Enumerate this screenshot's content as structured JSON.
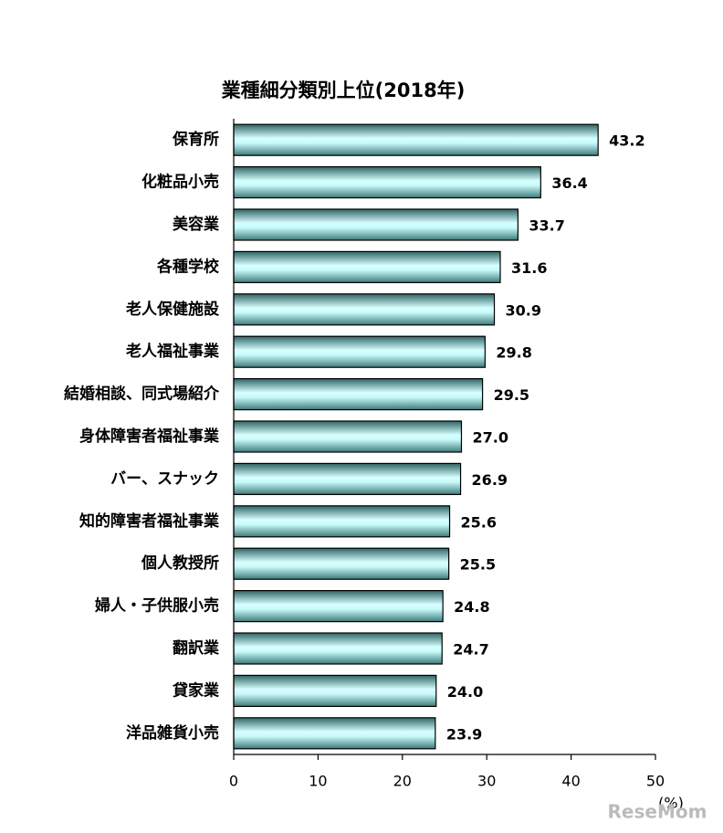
{
  "chart_data": {
    "type": "hbar",
    "title": "業種細分類別上位(2018年)",
    "categories": [
      "保育所",
      "化粧品小売",
      "美容業",
      "各種学校",
      "老人保健施設",
      "老人福祉事業",
      "結婚相談、同式場紹介",
      "身体障害者福祉事業",
      "バー、スナック",
      "知的障害者福祉事業",
      "個人教授所",
      "婦人・子供服小売",
      "翻訳業",
      "貸家業",
      "洋品雑貨小売"
    ],
    "values": [
      43.2,
      36.4,
      33.7,
      31.6,
      30.9,
      29.8,
      29.5,
      27.0,
      26.9,
      25.6,
      25.5,
      24.8,
      24.7,
      24.0,
      23.9
    ],
    "value_labels": [
      "43.2",
      "36.4",
      "33.7",
      "31.6",
      "30.9",
      "29.8",
      "29.5",
      "27.0",
      "26.9",
      "25.6",
      "25.5",
      "24.8",
      "24.7",
      "24.0",
      "23.9"
    ],
    "color": "#c8ffff",
    "xlim": [
      0,
      50
    ],
    "xticks": [
      0,
      10,
      20,
      30,
      40,
      50
    ],
    "x_unit": "(%)",
    "watermark": "ReseMom"
  }
}
